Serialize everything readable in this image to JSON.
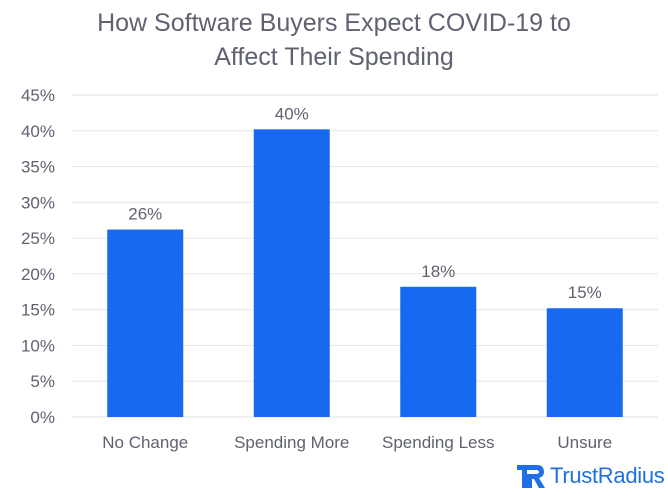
{
  "chart_data": {
    "type": "bar",
    "title_line1": "How Software Buyers Expect COVID-19 to",
    "title_line2": "Affect Their Spending",
    "categories": [
      "No Change",
      "Spending More",
      "Spending Less",
      "Unsure"
    ],
    "values": [
      26.2,
      40.2,
      18.2,
      15.2
    ],
    "data_labels": [
      "26%",
      "40%",
      "18%",
      "15%"
    ],
    "yticks": [
      0,
      5,
      10,
      15,
      20,
      25,
      30,
      35,
      40,
      45
    ],
    "ytick_labels": [
      "0%",
      "5%",
      "10%",
      "15%",
      "20%",
      "25%",
      "30%",
      "35%",
      "40%",
      "45%"
    ],
    "ylim": [
      0,
      45
    ],
    "grid": true,
    "xlabel": "",
    "ylabel": ""
  },
  "colors": {
    "bar": "#1769f0",
    "grid": "#e6e6e6",
    "text": "#5f6270",
    "brand": "#1f6fe5"
  },
  "brand": {
    "name": "TrustRadius",
    "icon": "trustradius-logo-icon"
  }
}
